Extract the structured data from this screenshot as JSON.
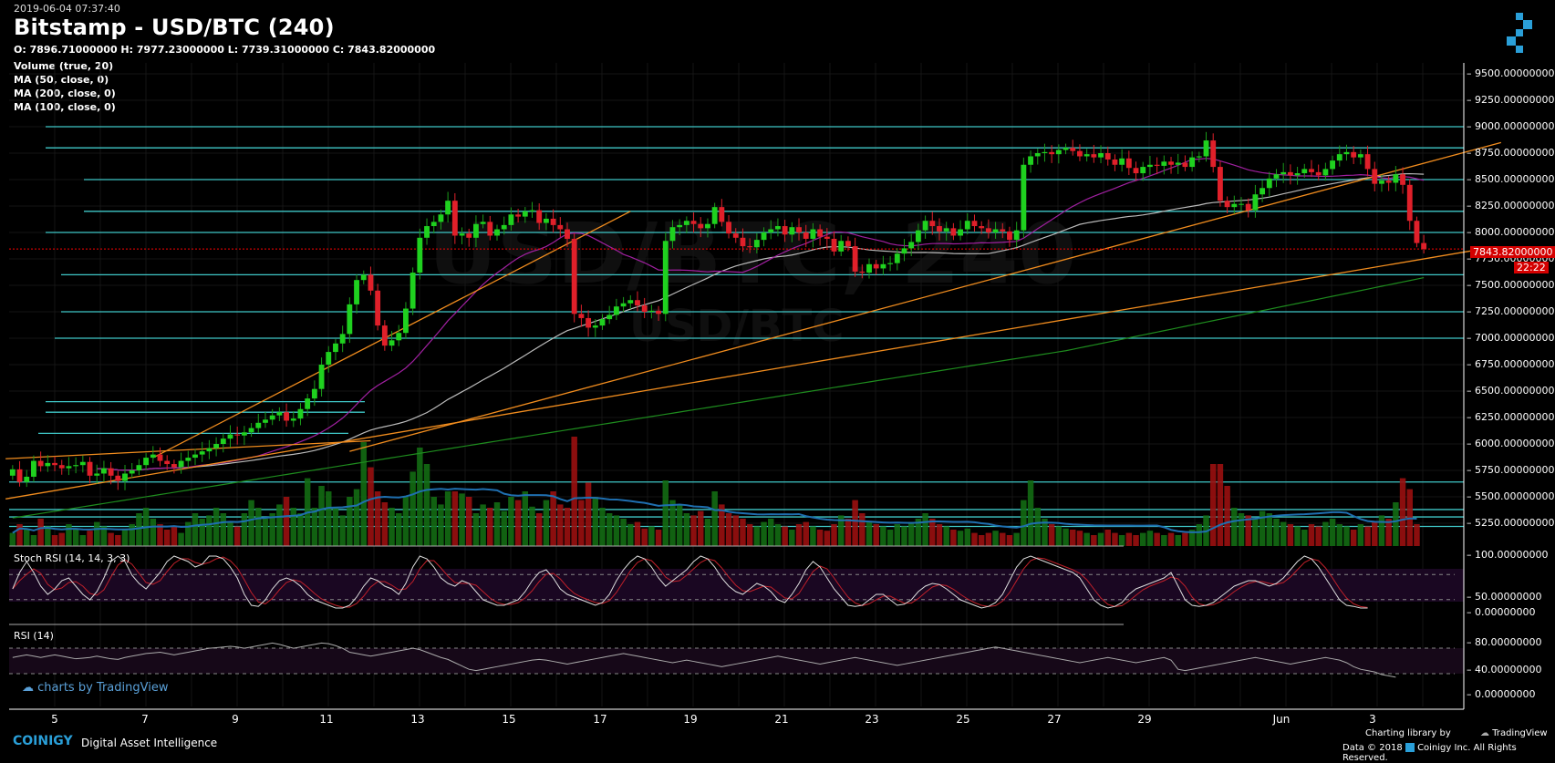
{
  "header": {
    "timestamp": "2019-06-04 07:37:40",
    "title": "Bitstamp - USD/BTC (240)",
    "ohlc": "O: 7896.71000000 H: 7977.23000000 L: 7739.31000000 C: 7843.82000000"
  },
  "indicators": [
    "Volume (true, 20)",
    "MA (50, close, 0)",
    "MA (200, close, 0)",
    "MA (100, close, 0)"
  ],
  "watermark": {
    "main": "USD/BTC, 240",
    "sub": "USD/BTC"
  },
  "chart_data": {
    "type": "candlestick",
    "title": "Bitstamp - USD/BTC (240)",
    "price_axis": {
      "min": 5250,
      "max": 9500,
      "step": 250,
      "ticks": [
        "9500.00000000",
        "9250.00000000",
        "9000.00000000",
        "8750.00000000",
        "8500.00000000",
        "8250.00000000",
        "8000.00000000",
        "7750.00000000",
        "7500.00000000",
        "7250.00000000",
        "7000.00000000",
        "6750.00000000",
        "6500.00000000",
        "6250.00000000",
        "6000.00000000",
        "5750.00000000",
        "5500.00000000",
        "5250.00000000"
      ]
    },
    "x_axis": {
      "labels": [
        "5",
        "7",
        "9",
        "11",
        "13",
        "15",
        "17",
        "19",
        "21",
        "23",
        "25",
        "27",
        "29",
        "Jun",
        "3"
      ]
    },
    "last_price": {
      "value": 7843.82,
      "label": "7843.82000000",
      "countdown": "22:22"
    },
    "horizontal_levels": [
      9000,
      8800,
      8500,
      8200,
      8000,
      7600,
      7250,
      7000,
      6400,
      6300,
      6100,
      5640,
      5380,
      5310,
      5220
    ],
    "close_series": [
      5760,
      5640,
      5690,
      5840,
      5790,
      5820,
      5800,
      5770,
      5790,
      5800,
      5830,
      5700,
      5720,
      5770,
      5700,
      5650,
      5720,
      5750,
      5800,
      5870,
      5900,
      5840,
      5810,
      5780,
      5840,
      5870,
      5900,
      5930,
      5960,
      6000,
      6050,
      6090,
      6080,
      6110,
      6150,
      6200,
      6230,
      6270,
      6300,
      6220,
      6240,
      6330,
      6430,
      6520,
      6750,
      6870,
      6950,
      7040,
      7320,
      7550,
      7600,
      7450,
      7120,
      6930,
      6980,
      7050,
      7280,
      7620,
      7950,
      8060,
      8100,
      8170,
      8300,
      7970,
      7990,
      7950,
      8080,
      8100,
      7970,
      8030,
      8070,
      8170,
      8150,
      8200,
      8210,
      8090,
      8130,
      8070,
      8030,
      7940,
      7230,
      7190,
      7100,
      7120,
      7180,
      7220,
      7300,
      7330,
      7360,
      7310,
      7250,
      7260,
      7230,
      7920,
      8050,
      8070,
      8110,
      8080,
      8040,
      8080,
      8240,
      8100,
      7990,
      7950,
      7870,
      7860,
      7930,
      8000,
      8030,
      8060,
      7980,
      8050,
      8000,
      7940,
      8030,
      7960,
      7940,
      7820,
      7920,
      7870,
      7630,
      7620,
      7700,
      7660,
      7700,
      7710,
      7800,
      7850,
      7910,
      8020,
      8110,
      8060,
      8010,
      8040,
      7970,
      8030,
      8110,
      8060,
      8040,
      8000,
      8030,
      8010,
      7930,
      8020,
      8640,
      8720,
      8750,
      8760,
      8740,
      8780,
      8800,
      8770,
      8720,
      8740,
      8710,
      8750,
      8690,
      8640,
      8700,
      8610,
      8560,
      8620,
      8640,
      8630,
      8670,
      8640,
      8660,
      8620,
      8710,
      8720,
      8870,
      8620,
      8300,
      8240,
      8270,
      8270,
      8210,
      8360,
      8420,
      8510,
      8550,
      8570,
      8540,
      8560,
      8600,
      8570,
      8540,
      8600,
      8680,
      8740,
      8760,
      8710,
      8740,
      8600,
      8460,
      8490,
      8470,
      8550,
      8450,
      8110,
      7900,
      7844
    ],
    "volume_relative": [
      0.12,
      0.2,
      0.15,
      0.1,
      0.25,
      0.18,
      0.1,
      0.12,
      0.2,
      0.15,
      0.1,
      0.14,
      0.22,
      0.18,
      0.12,
      0.1,
      0.15,
      0.2,
      0.3,
      0.35,
      0.25,
      0.2,
      0.15,
      0.18,
      0.12,
      0.22,
      0.3,
      0.25,
      0.28,
      0.35,
      0.3,
      0.22,
      0.18,
      0.3,
      0.42,
      0.35,
      0.25,
      0.3,
      0.38,
      0.45,
      0.35,
      0.3,
      0.62,
      0.35,
      0.55,
      0.5,
      0.35,
      0.28,
      0.45,
      0.52,
      0.95,
      0.72,
      0.5,
      0.4,
      0.35,
      0.3,
      0.45,
      0.68,
      0.9,
      0.75,
      0.45,
      0.38,
      0.5,
      0.5,
      0.48,
      0.45,
      0.3,
      0.38,
      0.35,
      0.4,
      0.32,
      0.45,
      0.42,
      0.5,
      0.36,
      0.3,
      0.42,
      0.5,
      0.38,
      0.35,
      1.0,
      0.42,
      0.58,
      0.45,
      0.35,
      0.3,
      0.28,
      0.25,
      0.2,
      0.22,
      0.16,
      0.18,
      0.15,
      0.6,
      0.42,
      0.38,
      0.3,
      0.28,
      0.32,
      0.25,
      0.5,
      0.38,
      0.3,
      0.28,
      0.25,
      0.2,
      0.18,
      0.22,
      0.25,
      0.2,
      0.18,
      0.15,
      0.2,
      0.22,
      0.18,
      0.15,
      0.14,
      0.2,
      0.28,
      0.25,
      0.42,
      0.3,
      0.22,
      0.2,
      0.18,
      0.15,
      0.2,
      0.18,
      0.22,
      0.25,
      0.3,
      0.25,
      0.2,
      0.18,
      0.15,
      0.14,
      0.16,
      0.12,
      0.1,
      0.12,
      0.14,
      0.12,
      0.1,
      0.12,
      0.42,
      0.6,
      0.35,
      0.25,
      0.2,
      0.18,
      0.16,
      0.15,
      0.14,
      0.12,
      0.1,
      0.12,
      0.15,
      0.12,
      0.1,
      0.12,
      0.1,
      0.12,
      0.14,
      0.12,
      0.1,
      0.12,
      0.1,
      0.12,
      0.15,
      0.2,
      0.28,
      0.75,
      0.75,
      0.55,
      0.35,
      0.3,
      0.28,
      0.25,
      0.32,
      0.3,
      0.25,
      0.22,
      0.2,
      0.18,
      0.15,
      0.2,
      0.18,
      0.22,
      0.25,
      0.2,
      0.18,
      0.15,
      0.2,
      0.18,
      0.22,
      0.28,
      0.25,
      0.4,
      0.62,
      0.52,
      0.2
    ],
    "overlays": {
      "ma50": {
        "color": "#a020a0"
      },
      "ma100": {
        "color": "#bbbbbb"
      },
      "ma200": {
        "color": "#1e8c1e"
      },
      "trendlines": {
        "color": "#f08c1e"
      }
    },
    "stoch_rsi": {
      "name": "Stoch RSI (14, 14, 3, 3)",
      "ticks": [
        "100.00000000",
        "50.00000000",
        "0.00000000"
      ],
      "k_values": [
        40,
        70,
        90,
        70,
        45,
        30,
        40,
        55,
        60,
        45,
        30,
        20,
        35,
        60,
        90,
        100,
        90,
        65,
        50,
        40,
        55,
        70,
        90,
        100,
        95,
        90,
        80,
        85,
        100,
        100,
        95,
        80,
        60,
        30,
        10,
        8,
        20,
        40,
        55,
        60,
        55,
        45,
        30,
        20,
        15,
        10,
        5,
        5,
        10,
        25,
        45,
        60,
        55,
        45,
        40,
        30,
        50,
        80,
        100,
        95,
        80,
        60,
        50,
        45,
        55,
        50,
        35,
        20,
        15,
        10,
        10,
        15,
        20,
        35,
        55,
        70,
        75,
        60,
        40,
        30,
        25,
        20,
        15,
        10,
        15,
        30,
        55,
        75,
        90,
        100,
        95,
        80,
        60,
        45,
        55,
        65,
        75,
        90,
        100,
        95,
        80,
        60,
        45,
        35,
        30,
        40,
        50,
        45,
        35,
        20,
        15,
        30,
        50,
        75,
        90,
        80,
        60,
        40,
        25,
        10,
        8,
        10,
        20,
        30,
        30,
        20,
        10,
        12,
        20,
        35,
        45,
        50,
        48,
        40,
        30,
        20,
        15,
        10,
        5,
        8,
        15,
        30,
        55,
        80,
        95,
        100,
        95,
        90,
        85,
        80,
        75,
        70,
        60,
        40,
        20,
        10,
        5,
        8,
        15,
        30,
        40,
        45,
        50,
        55,
        60,
        70,
        45,
        20,
        10,
        8,
        10,
        15,
        25,
        35,
        45,
        50,
        55,
        55,
        50,
        45,
        50,
        60,
        75,
        90,
        100,
        95,
        80,
        60,
        40,
        20,
        10,
        8,
        5,
        5
      ]
    },
    "rsi": {
      "name": "RSI (14)",
      "ticks": [
        "80.00000000",
        "40.00000000",
        "0.00000000"
      ],
      "values": [
        58,
        60,
        62,
        60,
        58,
        60,
        62,
        60,
        58,
        56,
        57,
        58,
        60,
        58,
        56,
        55,
        58,
        60,
        62,
        64,
        65,
        66,
        64,
        62,
        64,
        66,
        68,
        70,
        72,
        73,
        74,
        75,
        74,
        72,
        74,
        76,
        78,
        80,
        78,
        75,
        72,
        74,
        76,
        78,
        80,
        79,
        76,
        72,
        66,
        64,
        62,
        60,
        62,
        64,
        66,
        68,
        70,
        72,
        70,
        66,
        62,
        58,
        55,
        50,
        45,
        40,
        38,
        40,
        42,
        44,
        46,
        48,
        50,
        52,
        54,
        55,
        54,
        52,
        50,
        48,
        50,
        52,
        54,
        56,
        58,
        60,
        62,
        64,
        62,
        60,
        58,
        56,
        54,
        52,
        50,
        52,
        54,
        52,
        50,
        48,
        46,
        44,
        46,
        48,
        50,
        52,
        54,
        56,
        58,
        60,
        58,
        56,
        54,
        52,
        50,
        48,
        50,
        52,
        54,
        56,
        58,
        56,
        54,
        52,
        50,
        48,
        46,
        48,
        50,
        52,
        54,
        56,
        58,
        60,
        62,
        64,
        66,
        68,
        70,
        72,
        74,
        72,
        70,
        68,
        66,
        64,
        62,
        60,
        58,
        56,
        54,
        52,
        50,
        52,
        54,
        56,
        58,
        56,
        54,
        52,
        50,
        52,
        54,
        56,
        58,
        54,
        40,
        38,
        40,
        42,
        44,
        46,
        48,
        50,
        52,
        54,
        56,
        58,
        56,
        54,
        52,
        50,
        48,
        50,
        52,
        54,
        56,
        58,
        56,
        54,
        50,
        44,
        40,
        38,
        36,
        32,
        30,
        28
      ]
    }
  },
  "tradingview": {
    "label": "charts by TradingView"
  },
  "footer": {
    "brand": "COINIGY",
    "tagline": "Digital Asset Intelligence",
    "charting_label": "Charting library by",
    "tv_brand": "TradingView",
    "copyright": "Data © 2018",
    "copyright_rest": "Coinigy Inc. All Rights Reserved."
  },
  "colors": {
    "up": "#1a9c1a",
    "down": "#e0202a",
    "level": "#3fc7c7",
    "last_price": "#ff0000"
  }
}
